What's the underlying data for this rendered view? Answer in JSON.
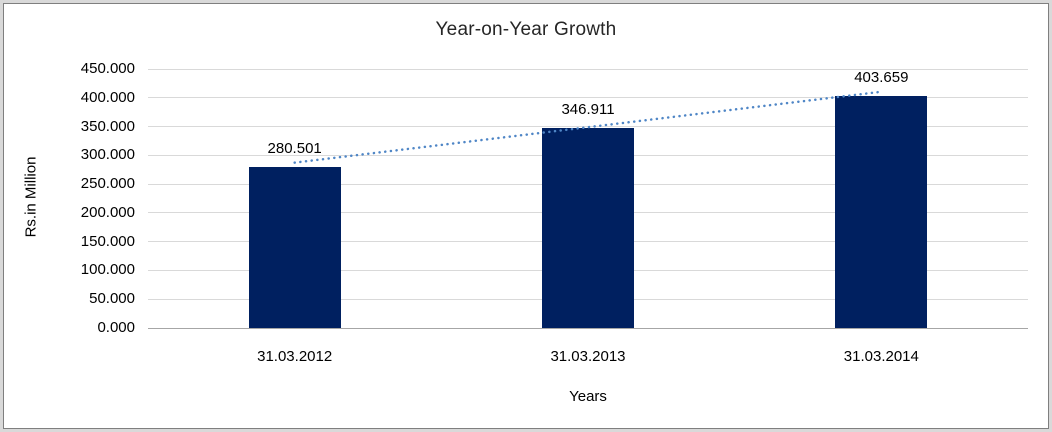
{
  "chart_data": {
    "type": "bar",
    "title": "Year-on-Year Growth",
    "xlabel": "Years",
    "ylabel": "Rs.in Million",
    "categories": [
      "31.03.2012",
      "31.03.2013",
      "31.03.2014"
    ],
    "values": [
      280.501,
      346.911,
      403.659
    ],
    "value_labels": [
      "280.501",
      "346.911",
      "403.659"
    ],
    "ylim": [
      0,
      450
    ],
    "ytick_step": 50,
    "ytick_labels": [
      "0.000",
      "50.000",
      "100.000",
      "150.000",
      "200.000",
      "250.000",
      "300.000",
      "350.000",
      "400.000",
      "450.000"
    ],
    "grid": true,
    "legend_position": "none",
    "bar_color": "#002060",
    "gridline_color": "#d9d9d9",
    "zero_line_color": "#a6a6a6",
    "trendline": {
      "type": "linear",
      "style": "dotted",
      "color": "#4f86c6"
    }
  }
}
